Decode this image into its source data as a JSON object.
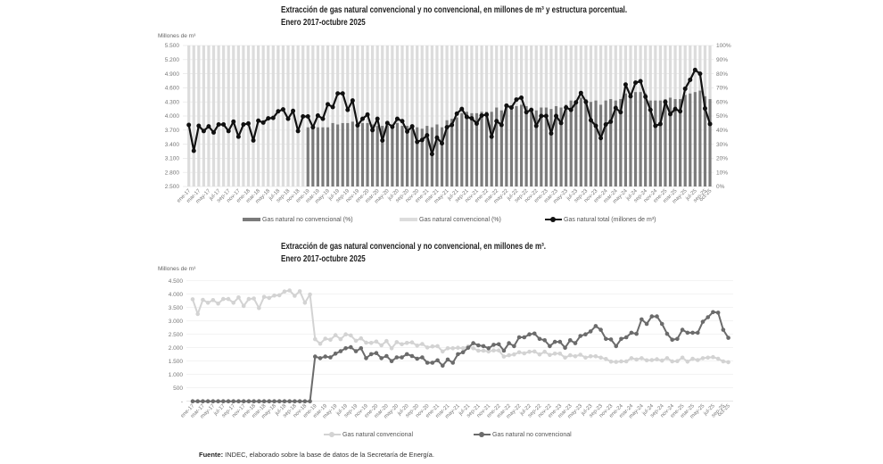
{
  "chart_data": [
    {
      "type": "bar+line",
      "title": "Extracción de gas natural convencional y no convencional, en millones de m³ y estructura porcentual.",
      "subtitle": "Enero 2017-octubre 2025",
      "ylabel": "Millones de m³",
      "y2label": "",
      "xlabel": "",
      "ylim": [
        2500,
        5500
      ],
      "y_ticks": [
        "5.500",
        "5.200",
        "4.900",
        "4.600",
        "4.300",
        "4.000",
        "3.700",
        "3.400",
        "3.100",
        "2.800",
        "2.500"
      ],
      "y2lim": [
        0,
        100
      ],
      "y2_ticks": [
        "100%",
        "90%",
        "80%",
        "70%",
        "60%",
        "50%",
        "40%",
        "30%",
        "20%",
        "10%",
        "0%"
      ],
      "grid": true,
      "legend_position": "bottom",
      "legend": [
        "Gas natural no convencional (%)",
        "Gas natural convencional (%)",
        "Gas natural total (millones de m³)"
      ],
      "categories": [
        "ene-17",
        "feb-17",
        "mar-17",
        "abr-17",
        "may-17",
        "jun-17",
        "jul-17",
        "ago-17",
        "sep-17",
        "oct-17",
        "nov-17",
        "dic-17",
        "ene-18",
        "feb-18",
        "mar-18",
        "abr-18",
        "may-18",
        "jun-18",
        "jul-18",
        "ago-18",
        "sep-18",
        "oct-18",
        "nov-18",
        "dic-18",
        "ene-19",
        "feb-19",
        "mar-19",
        "abr-19",
        "may-19",
        "jun-19",
        "jul-19",
        "ago-19",
        "sep-19",
        "oct-19",
        "nov-19",
        "dic-19",
        "ene-20",
        "feb-20",
        "mar-20",
        "abr-20",
        "may-20",
        "jun-20",
        "jul-20",
        "ago-20",
        "sep-20",
        "oct-20",
        "nov-20",
        "dic-20",
        "ene-21",
        "feb-21",
        "mar-21",
        "abr-21",
        "may-21",
        "jun-21",
        "jul-21",
        "ago-21",
        "sep-21",
        "oct-21",
        "nov-21",
        "dic-21",
        "ene-22",
        "feb-22",
        "mar-22",
        "abr-22",
        "may-22",
        "jun-22",
        "jul-22",
        "ago-22",
        "sep-22",
        "oct-22",
        "nov-22",
        "dic-22",
        "ene-23",
        "feb-23",
        "mar-23",
        "abr-23",
        "may-23",
        "jun-23",
        "jul-23",
        "ago-23",
        "sep-23",
        "oct-23",
        "nov-23",
        "dic-23",
        "ene-24",
        "feb-24",
        "mar-24",
        "abr-24",
        "may-24",
        "jun-24",
        "jul-24",
        "ago-24",
        "sep-24",
        "oct-24",
        "nov-24",
        "dic-24",
        "ene-25",
        "feb-25",
        "mar-25",
        "abr-25",
        "may-25",
        "jun-25",
        "jul-25",
        "ago-25",
        "sep-25",
        "oct-25"
      ],
      "xtick_labels": [
        "ene-17",
        "mar-17",
        "may-17",
        "jul-17",
        "sep-17",
        "nov-17",
        "ene-18",
        "mar-18",
        "may-18",
        "jul-18",
        "sep-18",
        "nov-18",
        "ene-19",
        "mar-19",
        "may-19",
        "jul-19",
        "sep-19",
        "nov-19",
        "ene-20",
        "mar-20",
        "may-20",
        "jul-20",
        "sep-20",
        "nov-20",
        "ene-21",
        "mar-21",
        "may-21",
        "jul-21",
        "sep-21",
        "nov-21",
        "ene-22",
        "mar-22",
        "may-22",
        "jul-22",
        "sep-22",
        "nov-22",
        "ene-23",
        "mar-23",
        "may-23",
        "jul-23",
        "sep-23",
        "nov-23",
        "ene-24",
        "mar-24",
        "may-24",
        "jul-24",
        "sep-24",
        "nov-24",
        "ene-25",
        "mar-25",
        "may-25",
        "jul-25",
        "sep-25",
        "oct-25"
      ],
      "series": [
        {
          "name": "Gas natural no convencional (%)",
          "type": "bar",
          "axis": "right",
          "color": "#7b7b7b",
          "values": [
            0,
            0,
            0,
            0,
            0,
            0,
            0,
            0,
            0,
            0,
            0,
            0,
            0,
            0,
            0,
            0,
            0,
            0,
            0,
            0,
            0,
            0,
            0,
            0,
            42,
            43,
            42,
            42,
            42,
            45,
            44,
            45,
            45,
            46,
            42,
            45,
            45,
            44,
            43,
            43,
            43,
            44,
            45,
            43,
            43,
            43,
            42,
            41,
            43,
            42,
            44,
            42,
            47,
            48,
            49,
            52,
            53,
            52,
            52,
            53,
            53,
            53,
            56,
            54,
            57,
            57,
            57,
            58,
            57,
            55,
            54,
            56,
            56,
            55,
            57,
            56,
            58,
            61,
            61,
            63,
            62,
            60,
            61,
            58,
            61,
            62,
            61,
            62,
            66,
            65,
            67,
            67,
            66,
            61,
            61,
            61,
            62,
            63,
            62,
            62,
            65,
            66,
            67,
            68,
            64,
            62
          ]
        },
        {
          "name": "Gas natural convencional (%)",
          "type": "bar",
          "axis": "right",
          "color": "#dcdcdc",
          "values": [
            100,
            100,
            100,
            100,
            100,
            100,
            100,
            100,
            100,
            100,
            100,
            100,
            100,
            100,
            100,
            100,
            100,
            100,
            100,
            100,
            100,
            100,
            100,
            100,
            58,
            57,
            58,
            58,
            58,
            55,
            56,
            55,
            55,
            54,
            58,
            55,
            55,
            56,
            57,
            57,
            57,
            56,
            55,
            57,
            57,
            57,
            58,
            59,
            57,
            58,
            56,
            58,
            53,
            52,
            51,
            48,
            47,
            48,
            48,
            47,
            47,
            47,
            44,
            46,
            43,
            43,
            43,
            42,
            43,
            45,
            46,
            44,
            44,
            45,
            43,
            44,
            42,
            39,
            39,
            37,
            38,
            40,
            39,
            42,
            39,
            38,
            39,
            38,
            34,
            35,
            33,
            33,
            34,
            39,
            39,
            39,
            38,
            37,
            38,
            38,
            35,
            34,
            33,
            32,
            36,
            38
          ]
        },
        {
          "name": "Gas natural total (millones de m³)",
          "type": "line",
          "axis": "left",
          "color": "#111111",
          "values": [
            3810,
            3260,
            3790,
            3680,
            3780,
            3650,
            3820,
            3820,
            3680,
            3880,
            3560,
            3820,
            3840,
            3480,
            3900,
            3860,
            3950,
            3960,
            4100,
            4140,
            3940,
            4110,
            3680,
            3990,
            3990,
            3760,
            4010,
            3940,
            4250,
            4190,
            4480,
            4480,
            4130,
            4330,
            3800,
            3940,
            4030,
            3700,
            3940,
            3480,
            3850,
            3770,
            3940,
            3890,
            3670,
            3780,
            3450,
            3490,
            3590,
            3190,
            3540,
            3420,
            3760,
            3810,
            4050,
            4150,
            3980,
            3950,
            3840,
            4010,
            4030,
            3560,
            3890,
            3810,
            4220,
            4180,
            4350,
            4390,
            4080,
            4130,
            3790,
            4000,
            4000,
            3630,
            4000,
            3850,
            4180,
            4130,
            4290,
            4490,
            4300,
            3910,
            3790,
            3530,
            3820,
            3880,
            4170,
            4080,
            4670,
            4420,
            4710,
            4740,
            4410,
            4130,
            3790,
            3830,
            4300,
            4040,
            4150,
            4100,
            4580,
            4770,
            4980,
            4900,
            4160,
            3830
          ]
        }
      ]
    },
    {
      "type": "line",
      "title": "Extracción de gas natural convencional y no convencional, en millones de m³.",
      "subtitle": "Enero 2017-octubre 2025",
      "ylabel": "Millones de m³",
      "xlabel": "",
      "ylim": [
        0,
        4500
      ],
      "y_ticks": [
        "4.500",
        "4.000",
        "3.500",
        "3.000",
        "2.500",
        "2.000",
        "1.500",
        "1.000",
        "500",
        "-"
      ],
      "grid": true,
      "legend_position": "bottom",
      "legend": [
        "Gas natural convencional",
        "Gas natural no convencional"
      ],
      "categories": [
        "ene-17",
        "feb-17",
        "mar-17",
        "abr-17",
        "may-17",
        "jun-17",
        "jul-17",
        "ago-17",
        "sep-17",
        "oct-17",
        "nov-17",
        "dic-17",
        "ene-18",
        "feb-18",
        "mar-18",
        "abr-18",
        "may-18",
        "jun-18",
        "jul-18",
        "ago-18",
        "sep-18",
        "oct-18",
        "nov-18",
        "dic-18",
        "ene-19",
        "feb-19",
        "mar-19",
        "abr-19",
        "may-19",
        "jun-19",
        "jul-19",
        "ago-19",
        "sep-19",
        "oct-19",
        "nov-19",
        "dic-19",
        "ene-20",
        "feb-20",
        "mar-20",
        "abr-20",
        "may-20",
        "jun-20",
        "jul-20",
        "ago-20",
        "sep-20",
        "oct-20",
        "nov-20",
        "dic-20",
        "ene-21",
        "feb-21",
        "mar-21",
        "abr-21",
        "may-21",
        "jun-21",
        "jul-21",
        "ago-21",
        "sep-21",
        "oct-21",
        "nov-21",
        "dic-21",
        "ene-22",
        "feb-22",
        "mar-22",
        "abr-22",
        "may-22",
        "jun-22",
        "jul-22",
        "ago-22",
        "sep-22",
        "oct-22",
        "nov-22",
        "dic-22",
        "ene-23",
        "feb-23",
        "mar-23",
        "abr-23",
        "may-23",
        "jun-23",
        "jul-23",
        "ago-23",
        "sep-23",
        "oct-23",
        "nov-23",
        "dic-23",
        "ene-24",
        "feb-24",
        "mar-24",
        "abr-24",
        "may-24",
        "jun-24",
        "jul-24",
        "ago-24",
        "sep-24",
        "oct-24",
        "nov-24",
        "dic-24",
        "ene-25",
        "feb-25",
        "mar-25",
        "abr-25",
        "may-25",
        "jun-25",
        "jul-25",
        "ago-25",
        "sep-25",
        "oct-25"
      ],
      "xtick_labels": [
        "ene-17",
        "mar-17",
        "may-17",
        "jul-17",
        "sep-17",
        "nov-17",
        "ene-18",
        "mar-18",
        "may-18",
        "jul-18",
        "sep-18",
        "nov-18",
        "ene-19",
        "mar-19",
        "may-19",
        "jul-19",
        "sep-19",
        "nov-19",
        "ene-20",
        "mar-20",
        "may-20",
        "jul-20",
        "sep-20",
        "nov-20",
        "ene-21",
        "mar-21",
        "may-21",
        "jul-21",
        "sep-21",
        "nov-21",
        "ene-22",
        "mar-22",
        "may-22",
        "jul-22",
        "sep-22",
        "nov-22",
        "ene-23",
        "mar-23",
        "may-23",
        "jul-23",
        "sep-23",
        "nov-23",
        "ene-24",
        "mar-24",
        "may-24",
        "jul-24",
        "sep-24",
        "nov-24",
        "ene-25",
        "mar-25",
        "may-25",
        "jul-25",
        "sep-25",
        "oct-25"
      ],
      "series": [
        {
          "name": "Gas natural convencional",
          "type": "line",
          "color": "#d3d3d3",
          "values": [
            3810,
            3260,
            3790,
            3680,
            3780,
            3650,
            3820,
            3820,
            3680,
            3880,
            3560,
            3820,
            3840,
            3480,
            3900,
            3860,
            3950,
            3960,
            4100,
            4140,
            3940,
            4110,
            3680,
            3990,
            2320,
            2150,
            2340,
            2300,
            2470,
            2320,
            2500,
            2460,
            2260,
            2350,
            2190,
            2180,
            2230,
            2090,
            2250,
            1980,
            2210,
            2130,
            2180,
            2200,
            2080,
            2140,
            2010,
            2050,
            2060,
            1860,
            1980,
            1980,
            2000,
            1980,
            2050,
            1980,
            1890,
            1890,
            1860,
            1900,
            1900,
            1670,
            1720,
            1750,
            1830,
            1790,
            1850,
            1860,
            1750,
            1850,
            1730,
            1780,
            1780,
            1630,
            1720,
            1680,
            1740,
            1630,
            1680,
            1680,
            1630,
            1580,
            1480,
            1470,
            1490,
            1490,
            1610,
            1560,
            1610,
            1530,
            1540,
            1570,
            1520,
            1610,
            1490,
            1500,
            1630,
            1480,
            1590,
            1540,
            1610,
            1630,
            1650,
            1590,
            1490,
            1460
          ]
        },
        {
          "name": "Gas natural no convencional",
          "type": "line",
          "color": "#6b6b6b",
          "values": [
            0,
            0,
            0,
            0,
            0,
            0,
            0,
            0,
            0,
            0,
            0,
            0,
            0,
            0,
            0,
            0,
            0,
            0,
            0,
            0,
            0,
            0,
            0,
            0,
            1670,
            1610,
            1670,
            1640,
            1780,
            1870,
            1980,
            2020,
            1870,
            1980,
            1610,
            1760,
            1800,
            1610,
            1690,
            1500,
            1640,
            1640,
            1760,
            1690,
            1590,
            1640,
            1440,
            1440,
            1530,
            1330,
            1560,
            1440,
            1760,
            1830,
            2000,
            2170,
            2090,
            2060,
            1980,
            2110,
            2130,
            1890,
            2170,
            2060,
            2390,
            2390,
            2500,
            2530,
            2330,
            2280,
            2060,
            2220,
            2220,
            2000,
            2280,
            2170,
            2440,
            2500,
            2610,
            2810,
            2670,
            2330,
            2310,
            2060,
            2330,
            2390,
            2560,
            2520,
            3060,
            2890,
            3170,
            3170,
            2890,
            2520,
            2300,
            2330,
            2670,
            2560,
            2560,
            2560,
            2970,
            3140,
            3330,
            3310,
            2670,
            2370
          ]
        }
      ]
    }
  ],
  "footer": {
    "source_label": "Fuente:",
    "source_text": " INDEC, elaborado sobre la base de datos de la Secretaría de Energía."
  }
}
